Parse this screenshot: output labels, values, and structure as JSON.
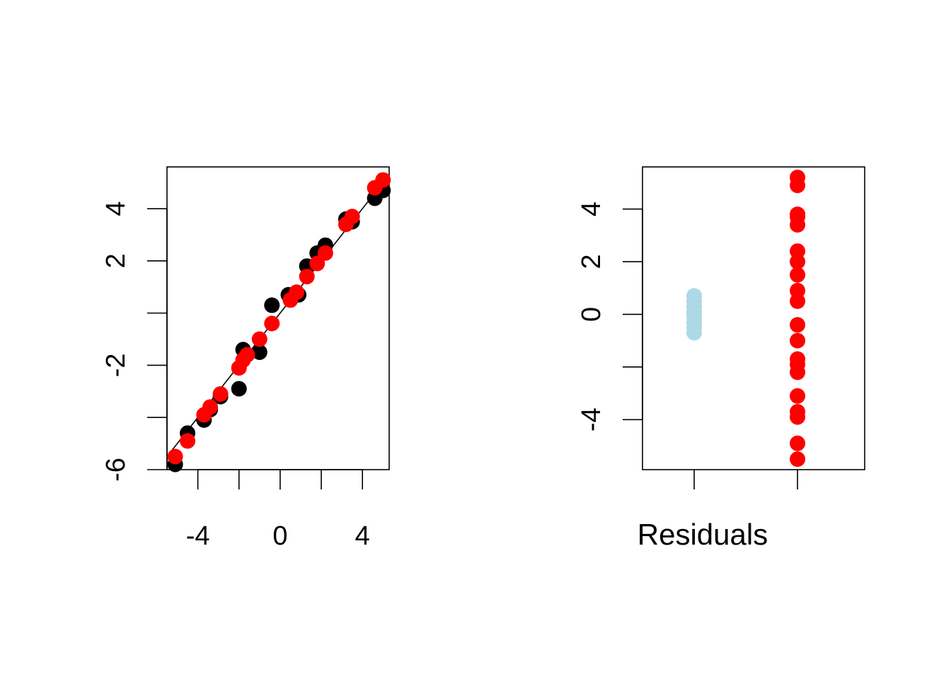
{
  "chart_data": [
    {
      "type": "scatter",
      "title": "",
      "xlabel": "",
      "ylabel": "",
      "xlim": [
        -5.5,
        5.3
      ],
      "ylim": [
        -6.0,
        5.6
      ],
      "xticks": [
        -6,
        -4,
        -2,
        0,
        2,
        4
      ],
      "xtick_labels": [
        "",
        "-4",
        "",
        "0",
        "",
        "4"
      ],
      "yticks": [
        -6,
        -4,
        -2,
        0,
        2,
        4
      ],
      "ytick_labels": [
        "-6",
        "",
        "-2",
        "",
        "2",
        "4"
      ],
      "grid": false,
      "reference_line": {
        "x": [
          -5.5,
          5.3
        ],
        "y": [
          -5.5,
          5.3
        ],
        "color": "#000000"
      },
      "series": [
        {
          "color": "#000000",
          "points": [
            [
              -5.1,
              -5.8
            ],
            [
              -4.5,
              -4.6
            ],
            [
              -3.7,
              -4.1
            ],
            [
              -3.4,
              -3.7
            ],
            [
              -2.9,
              -3.2
            ],
            [
              -2.0,
              -2.9
            ],
            [
              -1.8,
              -1.4
            ],
            [
              -1.0,
              -1.5
            ],
            [
              -0.4,
              0.3
            ],
            [
              0.4,
              0.7
            ],
            [
              0.9,
              0.7
            ],
            [
              1.3,
              1.8
            ],
            [
              1.8,
              2.3
            ],
            [
              2.2,
              2.6
            ],
            [
              3.2,
              3.6
            ],
            [
              3.5,
              3.5
            ],
            [
              4.6,
              4.4
            ],
            [
              5.0,
              4.7
            ]
          ]
        },
        {
          "color": "#ff0000",
          "points": [
            [
              -5.1,
              -5.5
            ],
            [
              -4.5,
              -4.9
            ],
            [
              -3.7,
              -3.9
            ],
            [
              -3.4,
              -3.6
            ],
            [
              -2.9,
              -3.1
            ],
            [
              -2.0,
              -2.1
            ],
            [
              -1.8,
              -1.8
            ],
            [
              -1.6,
              -1.6
            ],
            [
              -1.0,
              -1.0
            ],
            [
              -0.4,
              -0.4
            ],
            [
              0.5,
              0.5
            ],
            [
              0.8,
              0.8
            ],
            [
              1.3,
              1.4
            ],
            [
              1.8,
              1.9
            ],
            [
              2.2,
              2.3
            ],
            [
              3.2,
              3.4
            ],
            [
              3.5,
              3.7
            ],
            [
              4.6,
              4.8
            ],
            [
              5.0,
              5.1
            ]
          ]
        }
      ]
    },
    {
      "type": "scatter",
      "title": "",
      "xlabel": "Residuals",
      "ylabel": "",
      "xlim": [
        0.5,
        2.65
      ],
      "ylim": [
        -5.9,
        5.6
      ],
      "yticks": [
        -4,
        -2,
        0,
        2,
        4
      ],
      "ytick_labels": [
        "-4",
        "",
        "0",
        "2",
        "4"
      ],
      "grid": false,
      "groups": [
        {
          "x": 1,
          "color": "#add8e6",
          "values": [
            -0.7,
            -0.5,
            -0.3,
            -0.1,
            0.0,
            0.1,
            0.3,
            0.5,
            0.7
          ]
        },
        {
          "x": 2,
          "color": "#ff0000",
          "values": [
            5.2,
            4.9,
            3.8,
            3.7,
            3.4,
            2.4,
            2.0,
            1.5,
            0.9,
            0.5,
            -0.4,
            -1.0,
            -1.7,
            -1.9,
            -2.2,
            -3.1,
            -3.7,
            -3.9,
            -4.9,
            -5.5
          ]
        }
      ]
    }
  ]
}
